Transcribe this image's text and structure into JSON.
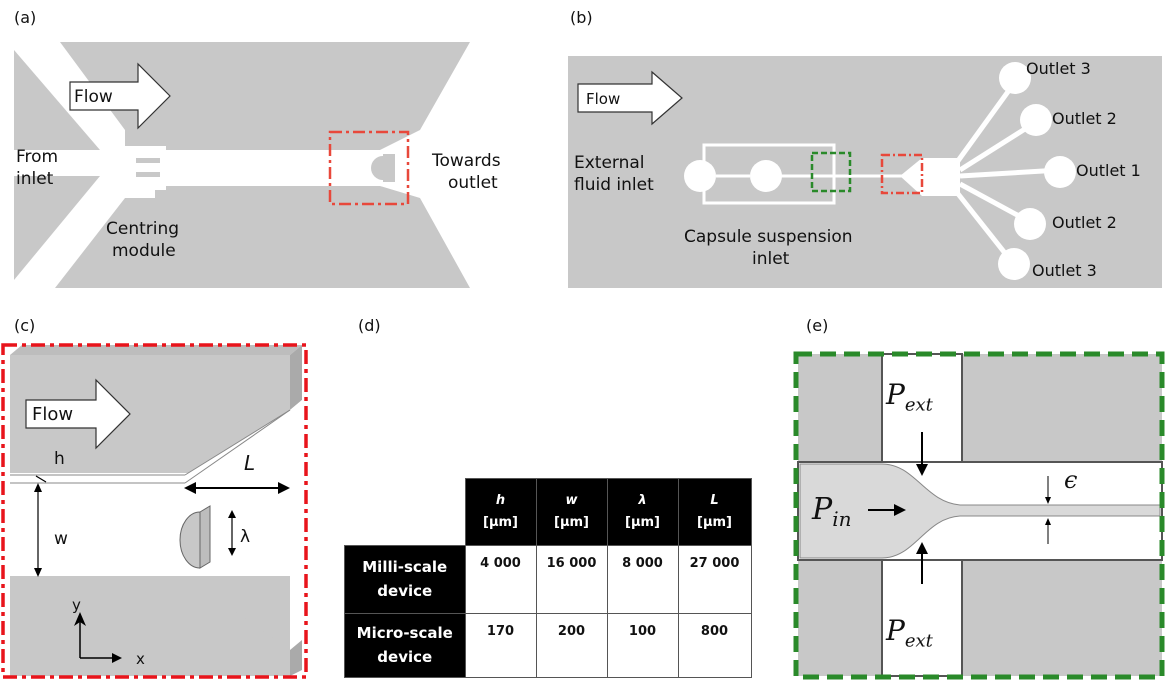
{
  "panels": {
    "a": {
      "letter": "(a)",
      "flow": "Flow",
      "from_inlet": [
        "From",
        "inlet"
      ],
      "towards_outlet": [
        "Towards",
        "outlet"
      ],
      "centring_module": [
        "Centring",
        "module"
      ]
    },
    "b": {
      "letter": "(b)",
      "flow": "Flow",
      "external_inlet": [
        "External",
        "fluid inlet"
      ],
      "capsule_inlet": [
        "Capsule suspension",
        "inlet"
      ],
      "outlets": [
        "Outlet 3",
        "Outlet 2",
        "Outlet 1",
        "Outlet 2",
        "Outlet 3"
      ]
    },
    "c": {
      "letter": "(c)",
      "flow": "Flow",
      "h": "h",
      "L": "L",
      "w": "w",
      "lambda": "λ",
      "y": "y",
      "x": "x"
    },
    "d": {
      "letter": "(d)",
      "headers": [
        {
          "sym": "h",
          "unit": "[µm]"
        },
        {
          "sym": "w",
          "unit": "[µm]"
        },
        {
          "sym": "λ",
          "unit": "[µm]"
        },
        {
          "sym": "L",
          "unit": "[µm]"
        }
      ],
      "rows": [
        {
          "label": [
            "Milli-scale",
            "device"
          ],
          "values": [
            "4 000",
            "16 000",
            "8 000",
            "27 000"
          ]
        },
        {
          "label": [
            "Micro-scale",
            "device"
          ],
          "values": [
            "170",
            "200",
            "100",
            "800"
          ]
        }
      ]
    },
    "e": {
      "letter": "(e)",
      "p_ext": "P",
      "ext_sub": "ext",
      "p_in": "P",
      "in_sub": "in",
      "epsilon": "ϵ"
    }
  },
  "colors": {
    "grey": "#c8c8c8",
    "red_dash": "#e8483b",
    "green_dash": "#2a8a2a"
  }
}
